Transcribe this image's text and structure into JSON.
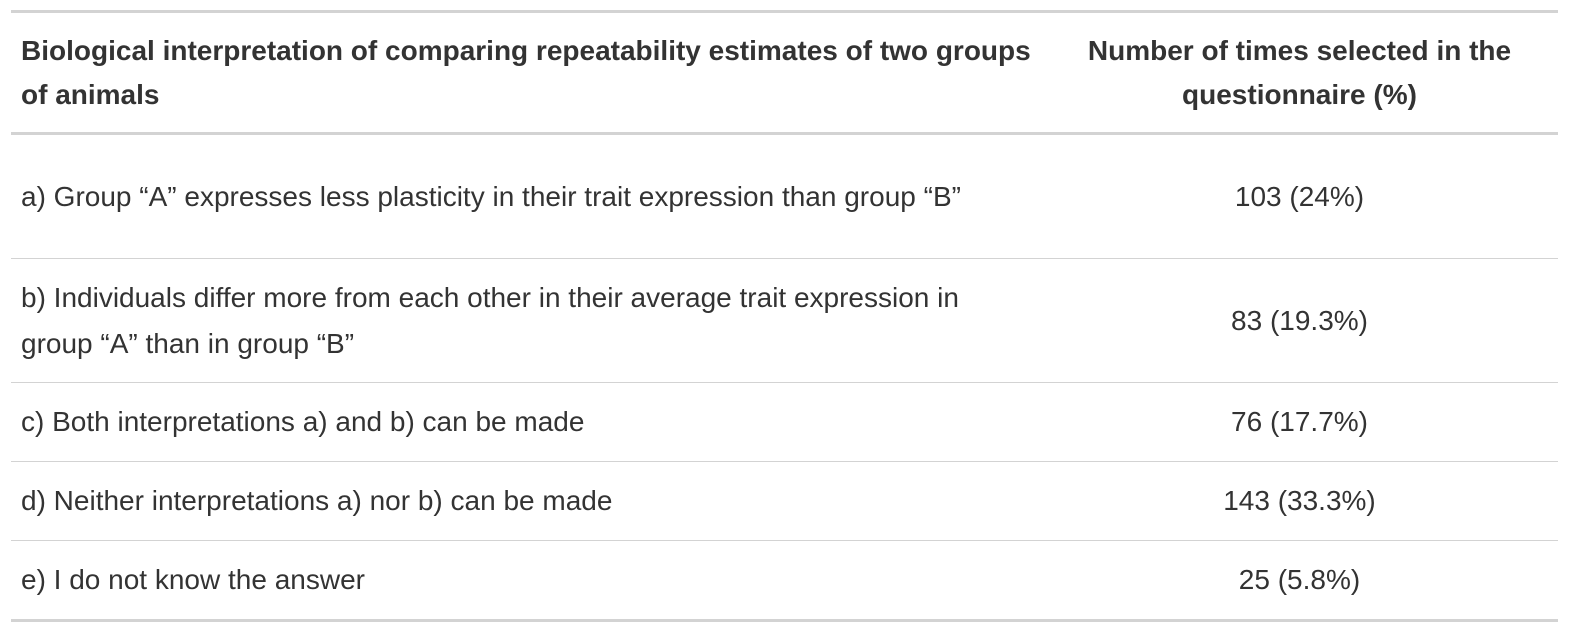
{
  "table": {
    "headers": [
      "Biological interpretation of comparing repeatability estimates of two groups of animals",
      "Number of times selected in the questionnaire (%)"
    ],
    "rows": [
      {
        "interpretation": "a) Group “A” expresses less plasticity in their trait expression than group “B”",
        "count": "103 (24%)"
      },
      {
        "interpretation": "b) Individuals differ more from each other in their average trait expression in group “A” than in group “B”",
        "count": "83 (19.3%)"
      },
      {
        "interpretation": "c) Both interpretations a) and b) can be made",
        "count": "76 (17.7%)"
      },
      {
        "interpretation": "d) Neither interpretations a) nor b) can be made",
        "count": "143 (33.3%)"
      },
      {
        "interpretation": "e) I do not know the answer",
        "count": "25 (5.8%)"
      }
    ]
  }
}
